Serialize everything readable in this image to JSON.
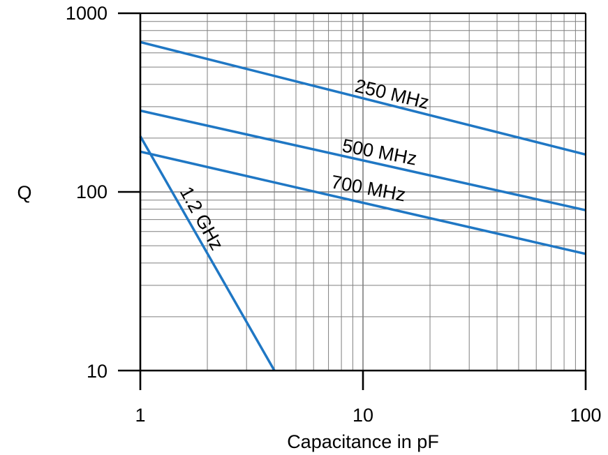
{
  "chart_data": {
    "type": "line",
    "title": "",
    "xlabel": "Capacitance in pF",
    "ylabel": "Q",
    "xscale": "log",
    "yscale": "log",
    "xlim": [
      1,
      100
    ],
    "ylim": [
      10,
      1000
    ],
    "x_ticks": [
      "1",
      "10",
      "100"
    ],
    "y_ticks": [
      "10",
      "100",
      "1000"
    ],
    "grid": true,
    "legend": "none",
    "colors": {
      "series": "#1f77c4",
      "grid": "#7f7f7f",
      "axis": "#000000"
    },
    "series": [
      {
        "name": "250 MHz",
        "x": [
          1,
          100
        ],
        "y": [
          690,
          162
        ]
      },
      {
        "name": "500 MHz",
        "x": [
          1,
          100
        ],
        "y": [
          285,
          79
        ]
      },
      {
        "name": "700 MHz",
        "x": [
          1,
          100
        ],
        "y": [
          168,
          45
        ]
      },
      {
        "name": "1.2 GHz",
        "x": [
          1,
          4
        ],
        "y": [
          205,
          10
        ]
      }
    ]
  }
}
